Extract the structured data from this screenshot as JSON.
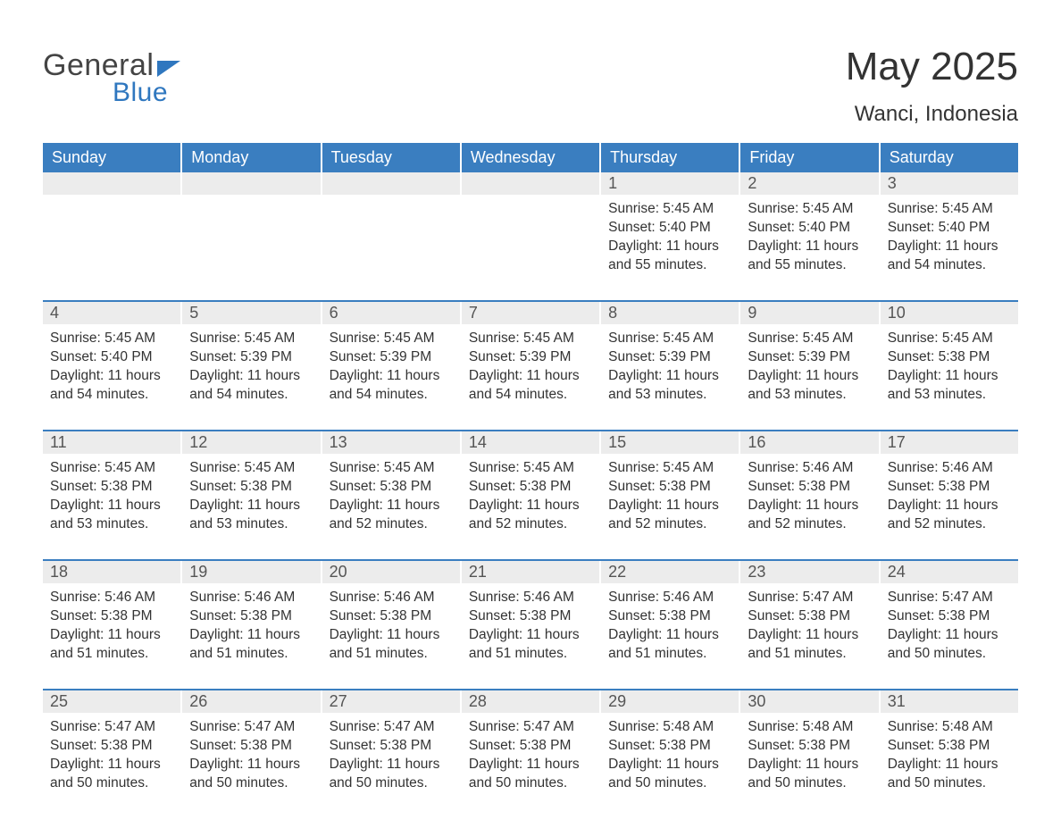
{
  "logo": {
    "text1": "General",
    "text2": "Blue"
  },
  "title": "May 2025",
  "location": "Wanci, Indonesia",
  "colors": {
    "header_bg": "#3a7ec0",
    "header_text": "#ffffff",
    "daynum_bg": "#ececec",
    "text": "#333333",
    "logo_blue": "#2f77bf"
  },
  "weekdays": [
    "Sunday",
    "Monday",
    "Tuesday",
    "Wednesday",
    "Thursday",
    "Friday",
    "Saturday"
  ],
  "weeks": [
    [
      {
        "n": "",
        "lines": []
      },
      {
        "n": "",
        "lines": []
      },
      {
        "n": "",
        "lines": []
      },
      {
        "n": "",
        "lines": []
      },
      {
        "n": "1",
        "lines": [
          "Sunrise: 5:45 AM",
          "Sunset: 5:40 PM",
          "Daylight: 11 hours",
          "and 55 minutes."
        ]
      },
      {
        "n": "2",
        "lines": [
          "Sunrise: 5:45 AM",
          "Sunset: 5:40 PM",
          "Daylight: 11 hours",
          "and 55 minutes."
        ]
      },
      {
        "n": "3",
        "lines": [
          "Sunrise: 5:45 AM",
          "Sunset: 5:40 PM",
          "Daylight: 11 hours",
          "and 54 minutes."
        ]
      }
    ],
    [
      {
        "n": "4",
        "lines": [
          "Sunrise: 5:45 AM",
          "Sunset: 5:40 PM",
          "Daylight: 11 hours",
          "and 54 minutes."
        ]
      },
      {
        "n": "5",
        "lines": [
          "Sunrise: 5:45 AM",
          "Sunset: 5:39 PM",
          "Daylight: 11 hours",
          "and 54 minutes."
        ]
      },
      {
        "n": "6",
        "lines": [
          "Sunrise: 5:45 AM",
          "Sunset: 5:39 PM",
          "Daylight: 11 hours",
          "and 54 minutes."
        ]
      },
      {
        "n": "7",
        "lines": [
          "Sunrise: 5:45 AM",
          "Sunset: 5:39 PM",
          "Daylight: 11 hours",
          "and 54 minutes."
        ]
      },
      {
        "n": "8",
        "lines": [
          "Sunrise: 5:45 AM",
          "Sunset: 5:39 PM",
          "Daylight: 11 hours",
          "and 53 minutes."
        ]
      },
      {
        "n": "9",
        "lines": [
          "Sunrise: 5:45 AM",
          "Sunset: 5:39 PM",
          "Daylight: 11 hours",
          "and 53 minutes."
        ]
      },
      {
        "n": "10",
        "lines": [
          "Sunrise: 5:45 AM",
          "Sunset: 5:38 PM",
          "Daylight: 11 hours",
          "and 53 minutes."
        ]
      }
    ],
    [
      {
        "n": "11",
        "lines": [
          "Sunrise: 5:45 AM",
          "Sunset: 5:38 PM",
          "Daylight: 11 hours",
          "and 53 minutes."
        ]
      },
      {
        "n": "12",
        "lines": [
          "Sunrise: 5:45 AM",
          "Sunset: 5:38 PM",
          "Daylight: 11 hours",
          "and 53 minutes."
        ]
      },
      {
        "n": "13",
        "lines": [
          "Sunrise: 5:45 AM",
          "Sunset: 5:38 PM",
          "Daylight: 11 hours",
          "and 52 minutes."
        ]
      },
      {
        "n": "14",
        "lines": [
          "Sunrise: 5:45 AM",
          "Sunset: 5:38 PM",
          "Daylight: 11 hours",
          "and 52 minutes."
        ]
      },
      {
        "n": "15",
        "lines": [
          "Sunrise: 5:45 AM",
          "Sunset: 5:38 PM",
          "Daylight: 11 hours",
          "and 52 minutes."
        ]
      },
      {
        "n": "16",
        "lines": [
          "Sunrise: 5:46 AM",
          "Sunset: 5:38 PM",
          "Daylight: 11 hours",
          "and 52 minutes."
        ]
      },
      {
        "n": "17",
        "lines": [
          "Sunrise: 5:46 AM",
          "Sunset: 5:38 PM",
          "Daylight: 11 hours",
          "and 52 minutes."
        ]
      }
    ],
    [
      {
        "n": "18",
        "lines": [
          "Sunrise: 5:46 AM",
          "Sunset: 5:38 PM",
          "Daylight: 11 hours",
          "and 51 minutes."
        ]
      },
      {
        "n": "19",
        "lines": [
          "Sunrise: 5:46 AM",
          "Sunset: 5:38 PM",
          "Daylight: 11 hours",
          "and 51 minutes."
        ]
      },
      {
        "n": "20",
        "lines": [
          "Sunrise: 5:46 AM",
          "Sunset: 5:38 PM",
          "Daylight: 11 hours",
          "and 51 minutes."
        ]
      },
      {
        "n": "21",
        "lines": [
          "Sunrise: 5:46 AM",
          "Sunset: 5:38 PM",
          "Daylight: 11 hours",
          "and 51 minutes."
        ]
      },
      {
        "n": "22",
        "lines": [
          "Sunrise: 5:46 AM",
          "Sunset: 5:38 PM",
          "Daylight: 11 hours",
          "and 51 minutes."
        ]
      },
      {
        "n": "23",
        "lines": [
          "Sunrise: 5:47 AM",
          "Sunset: 5:38 PM",
          "Daylight: 11 hours",
          "and 51 minutes."
        ]
      },
      {
        "n": "24",
        "lines": [
          "Sunrise: 5:47 AM",
          "Sunset: 5:38 PM",
          "Daylight: 11 hours",
          "and 50 minutes."
        ]
      }
    ],
    [
      {
        "n": "25",
        "lines": [
          "Sunrise: 5:47 AM",
          "Sunset: 5:38 PM",
          "Daylight: 11 hours",
          "and 50 minutes."
        ]
      },
      {
        "n": "26",
        "lines": [
          "Sunrise: 5:47 AM",
          "Sunset: 5:38 PM",
          "Daylight: 11 hours",
          "and 50 minutes."
        ]
      },
      {
        "n": "27",
        "lines": [
          "Sunrise: 5:47 AM",
          "Sunset: 5:38 PM",
          "Daylight: 11 hours",
          "and 50 minutes."
        ]
      },
      {
        "n": "28",
        "lines": [
          "Sunrise: 5:47 AM",
          "Sunset: 5:38 PM",
          "Daylight: 11 hours",
          "and 50 minutes."
        ]
      },
      {
        "n": "29",
        "lines": [
          "Sunrise: 5:48 AM",
          "Sunset: 5:38 PM",
          "Daylight: 11 hours",
          "and 50 minutes."
        ]
      },
      {
        "n": "30",
        "lines": [
          "Sunrise: 5:48 AM",
          "Sunset: 5:38 PM",
          "Daylight: 11 hours",
          "and 50 minutes."
        ]
      },
      {
        "n": "31",
        "lines": [
          "Sunrise: 5:48 AM",
          "Sunset: 5:38 PM",
          "Daylight: 11 hours",
          "and 50 minutes."
        ]
      }
    ]
  ]
}
